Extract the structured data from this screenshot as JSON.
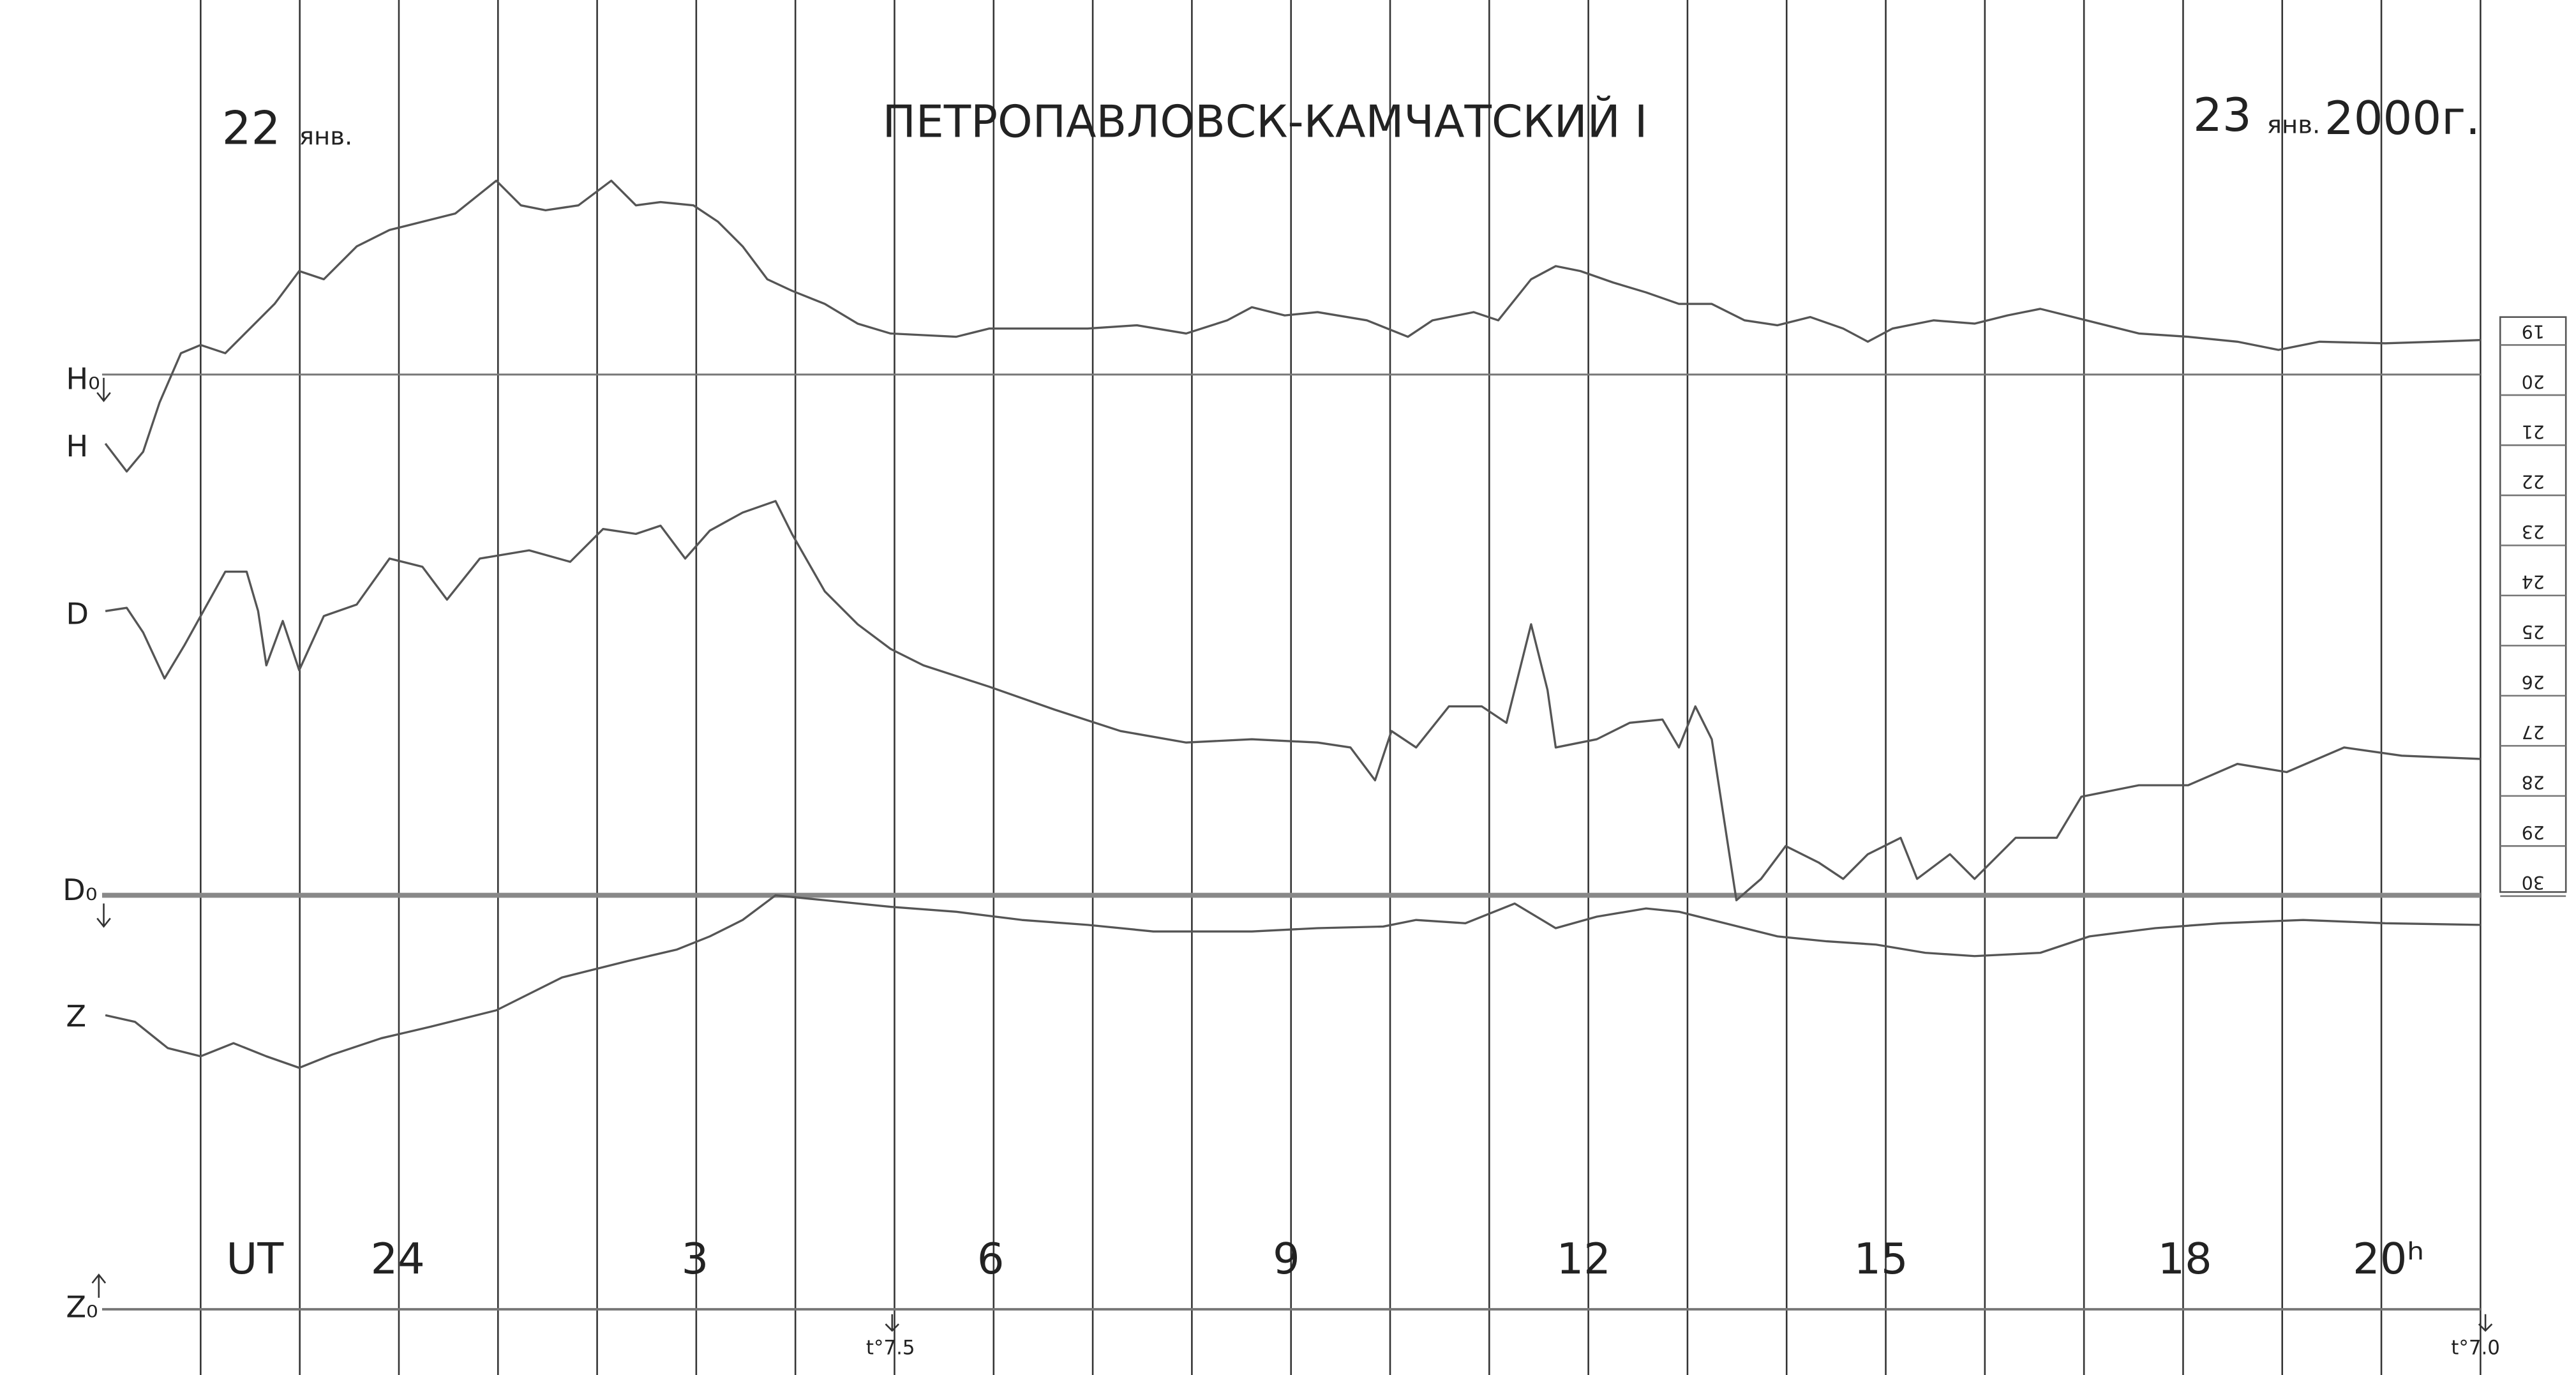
{
  "header": {
    "date_start": {
      "day": "22",
      "month": "янв."
    },
    "title": "ПЕТРОПАВЛОВСК-КАМЧАТСКИЙ I",
    "date_end": {
      "day": "23",
      "month": "янв.",
      "year": "2000г."
    }
  },
  "traces": {
    "h_base": "H₀",
    "h": "H",
    "d": "D",
    "d_base": "D₀",
    "z": "Z",
    "z_base": "Z₀"
  },
  "time_axis": {
    "labels": [
      "UT",
      "24",
      "3",
      "6",
      "9",
      "12",
      "15",
      "18",
      "20ʰ"
    ]
  },
  "temperature": {
    "start": "t°7.5",
    "end": "t°7.0"
  },
  "scale": {
    "labels": [
      19,
      20,
      21,
      22,
      23,
      24,
      25,
      26,
      27,
      28,
      29,
      30
    ]
  }
}
